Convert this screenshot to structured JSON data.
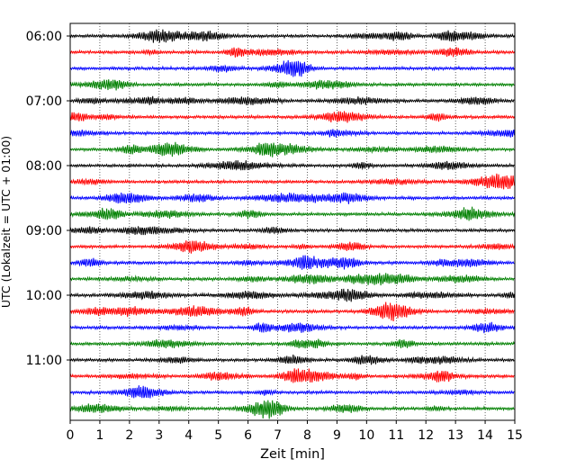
{
  "chart_data": {
    "type": "line",
    "title": "",
    "xlabel": "Zeit  [min]",
    "ylabel": "UTC (Lokalzeit = UTC + 01:00)",
    "xlim": [
      0,
      15
    ],
    "x_ticks": [
      "0",
      "1",
      "2",
      "3",
      "4",
      "5",
      "6",
      "7",
      "8",
      "9",
      "10",
      "11",
      "12",
      "13",
      "14",
      "15"
    ],
    "y_ticks": [
      "06:00",
      "07:00",
      "08:00",
      "09:00",
      "10:00",
      "11:00"
    ],
    "grid": "vertical dotted at each minute",
    "trace_interval_minutes": 15,
    "trace_count": 24,
    "first_trace": "06:00",
    "last_trace": "11:45",
    "trace_colors": [
      "#000000",
      "#ff0000",
      "#0000ff",
      "#008000"
    ],
    "note_values": "seismic helicorder traces; amplitude is noise-like and not individually labelled"
  }
}
